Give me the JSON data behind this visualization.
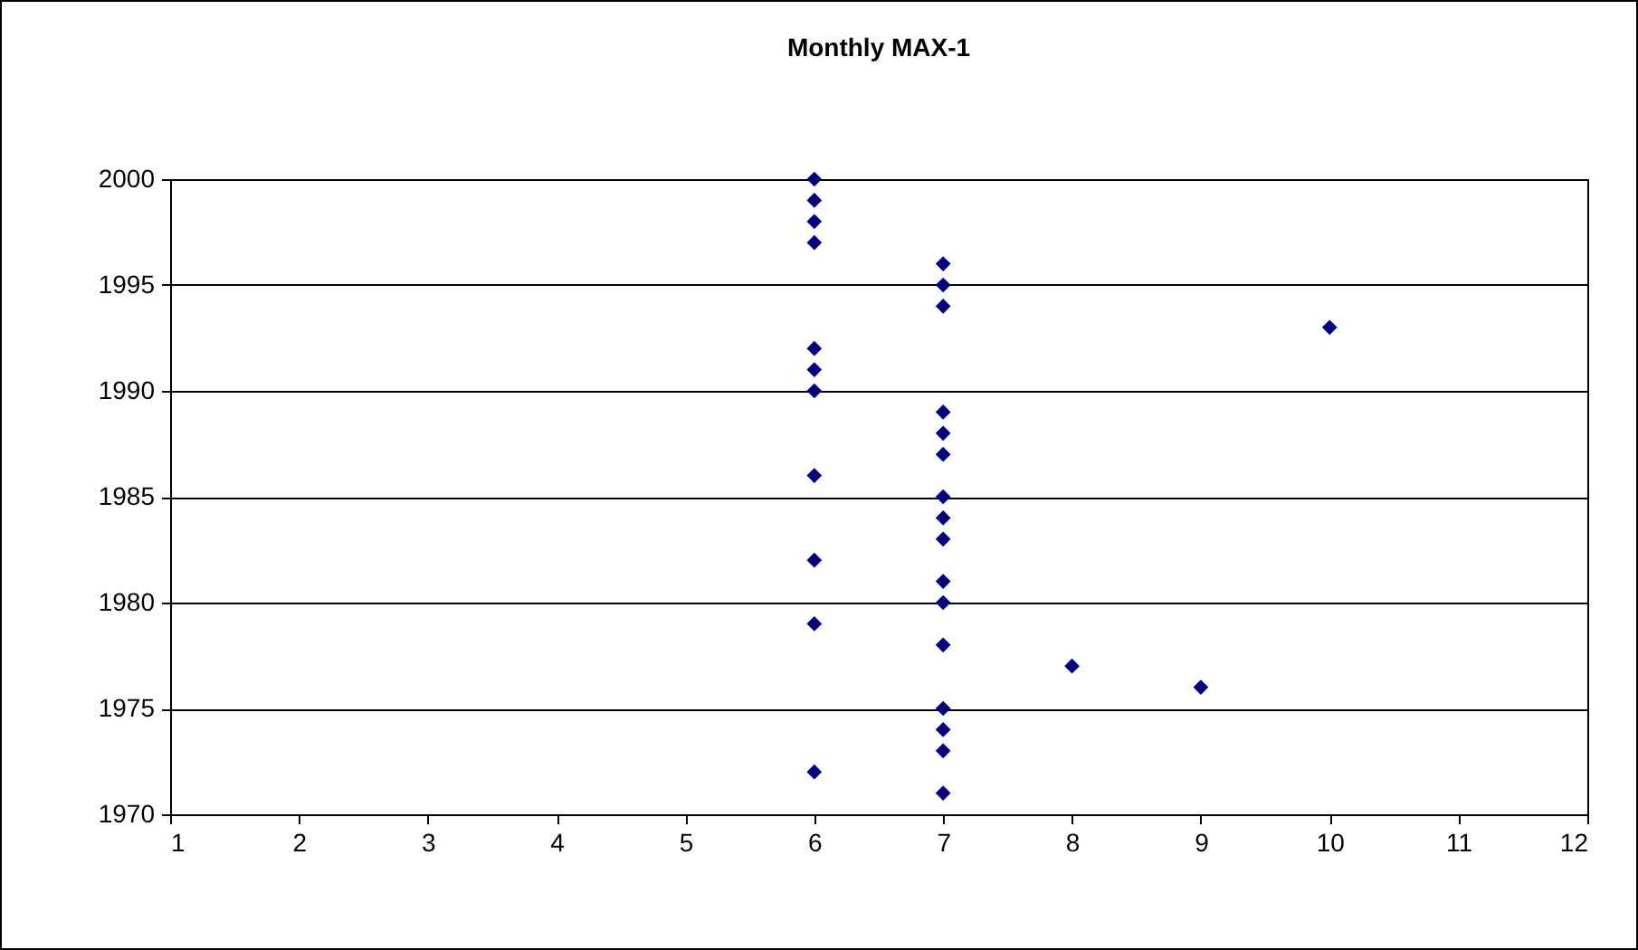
{
  "chart_data": {
    "type": "scatter",
    "title": "Monthly MAX-1",
    "series": [
      {
        "color": "#000080",
        "x": [
          6,
          6,
          6,
          6,
          6,
          6,
          6,
          6,
          6,
          6,
          6,
          7,
          7,
          7,
          7,
          7,
          7,
          7,
          7,
          7,
          7,
          7,
          7,
          7,
          7,
          7,
          7,
          8,
          9,
          10
        ],
        "values": [
          2000,
          1999,
          1998,
          1997,
          1992,
          1991,
          1990,
          1986,
          1982,
          1979,
          1972,
          1996,
          1995,
          1994,
          1989,
          1988,
          1987,
          1985,
          1984,
          1983,
          1981,
          1980,
          1978,
          1975,
          1974,
          1973,
          1971,
          1977,
          1976,
          1993
        ]
      }
    ],
    "xlim": [
      1,
      12
    ],
    "xticks": [
      1,
      2,
      3,
      4,
      5,
      6,
      7,
      8,
      9,
      10,
      11,
      12
    ],
    "ylim": [
      1970,
      2000
    ],
    "yticks": [
      1970,
      1975,
      1980,
      1985,
      1990,
      1995,
      2000
    ],
    "grid": "y",
    "marker": "diamond",
    "legend": false
  }
}
